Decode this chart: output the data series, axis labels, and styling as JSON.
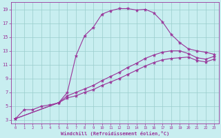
{
  "xlabel": "Windchill (Refroidissement éolien,°C)",
  "xlim": [
    -0.5,
    23.5
  ],
  "ylim": [
    2.5,
    20.0
  ],
  "yticks": [
    3,
    5,
    7,
    9,
    11,
    13,
    15,
    17,
    19
  ],
  "xticks": [
    0,
    1,
    2,
    3,
    4,
    5,
    6,
    7,
    8,
    9,
    10,
    11,
    12,
    13,
    14,
    15,
    16,
    17,
    18,
    19,
    20,
    21,
    22,
    23
  ],
  "bg_color": "#c8eef0",
  "line_color": "#993399",
  "grid_color": "#99cccc",
  "line1_x": [
    0,
    1,
    2,
    3,
    4,
    5,
    6,
    7,
    8,
    9,
    10,
    11,
    12,
    13,
    14,
    15,
    16,
    17,
    18,
    19,
    20,
    21,
    22,
    23
  ],
  "line1_y": [
    3.2,
    4.5,
    4.5,
    5.0,
    5.2,
    5.5,
    7.0,
    12.3,
    15.2,
    16.4,
    18.3,
    18.8,
    19.1,
    19.1,
    18.9,
    19.0,
    18.5,
    17.2,
    15.4,
    14.2,
    13.3,
    13.0,
    12.8,
    12.5
  ],
  "line2_x": [
    0,
    5,
    6,
    7,
    8,
    9,
    10,
    11,
    12,
    13,
    14,
    15,
    16,
    17,
    18,
    19,
    20,
    21,
    22,
    23
  ],
  "line2_y": [
    3.2,
    5.5,
    6.5,
    7.0,
    7.5,
    8.0,
    8.7,
    9.3,
    9.9,
    10.6,
    11.2,
    11.9,
    12.4,
    12.8,
    13.0,
    13.0,
    12.6,
    12.0,
    11.8,
    12.2
  ],
  "line3_x": [
    0,
    5,
    6,
    7,
    8,
    9,
    10,
    11,
    12,
    13,
    14,
    15,
    16,
    17,
    18,
    19,
    20,
    21,
    22,
    23
  ],
  "line3_y": [
    3.2,
    5.5,
    6.2,
    6.5,
    7.0,
    7.4,
    8.0,
    8.5,
    9.0,
    9.6,
    10.2,
    10.8,
    11.3,
    11.7,
    11.9,
    12.0,
    12.1,
    11.6,
    11.4,
    11.8
  ]
}
